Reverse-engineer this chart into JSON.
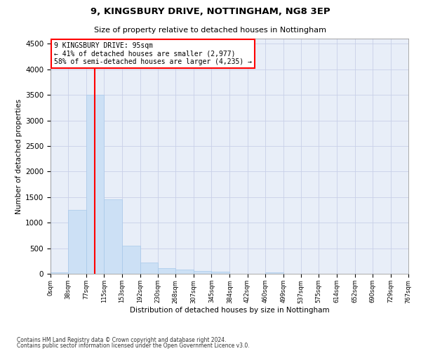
{
  "title1": "9, KINGSBURY DRIVE, NOTTINGHAM, NG8 3EP",
  "title2": "Size of property relative to detached houses in Nottingham",
  "xlabel": "Distribution of detached houses by size in Nottingham",
  "ylabel": "Number of detached properties",
  "footnote1": "Contains HM Land Registry data © Crown copyright and database right 2024.",
  "footnote2": "Contains public sector information licensed under the Open Government Licence v3.0.",
  "property_label": "9 KINGSBURY DRIVE: 95sqm",
  "annotation_line1": "← 41% of detached houses are smaller (2,977)",
  "annotation_line2": "58% of semi-detached houses are larger (4,235) →",
  "bar_color": "#cce0f5",
  "bar_edge_color": "#a8c8ea",
  "red_line_x": 95,
  "background_color": "#e8eef8",
  "grid_color": "#c8d0e8",
  "bin_edges": [
    0,
    38,
    77,
    115,
    153,
    192,
    230,
    268,
    307,
    345,
    384,
    422,
    460,
    499,
    537,
    575,
    614,
    652,
    690,
    729,
    767
  ],
  "bin_labels": [
    "0sqm",
    "38sqm",
    "77sqm",
    "115sqm",
    "153sqm",
    "192sqm",
    "230sqm",
    "268sqm",
    "307sqm",
    "345sqm",
    "384sqm",
    "422sqm",
    "460sqm",
    "499sqm",
    "537sqm",
    "575sqm",
    "614sqm",
    "652sqm",
    "690sqm",
    "729sqm",
    "767sqm"
  ],
  "counts": [
    25,
    1250,
    3500,
    1450,
    550,
    220,
    110,
    80,
    55,
    35,
    5,
    5,
    25,
    5,
    0,
    0,
    5,
    0,
    0,
    0
  ],
  "ylim_max": 4600,
  "yticks": [
    0,
    500,
    1000,
    1500,
    2000,
    2500,
    3000,
    3500,
    4000,
    4500
  ]
}
